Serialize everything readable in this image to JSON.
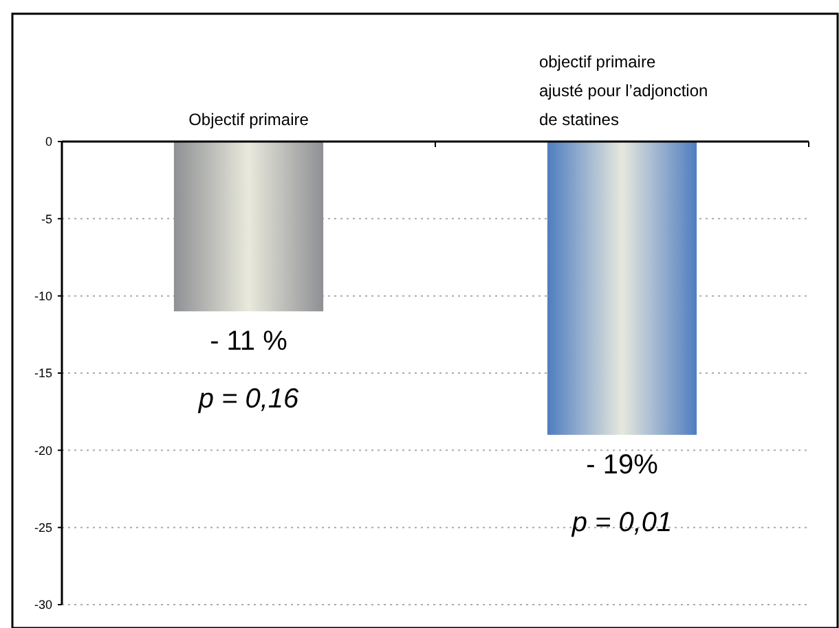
{
  "chart_data": {
    "type": "bar",
    "categories": [
      "Objectif  primaire",
      "objectif primaire\najusté pour l’adjonction\nde statines"
    ],
    "values": [
      -11,
      -19
    ],
    "colors": [
      "#8e9094",
      "#4f7dc0"
    ],
    "value_labels": [
      "- 11 %",
      "- 19%"
    ],
    "annotations": [
      {
        "text": "p = 0,16",
        "x": "Objectif  primaire",
        "y": -11
      },
      {
        "text": "p = 0,01",
        "x": "objectif primaire\najusté pour l’adjonction\nde statines",
        "y": -19
      }
    ],
    "ylim": [
      -30,
      0
    ],
    "yticks": [
      0,
      -5,
      -10,
      -15,
      -20,
      -25,
      -30
    ],
    "grid": "y"
  }
}
